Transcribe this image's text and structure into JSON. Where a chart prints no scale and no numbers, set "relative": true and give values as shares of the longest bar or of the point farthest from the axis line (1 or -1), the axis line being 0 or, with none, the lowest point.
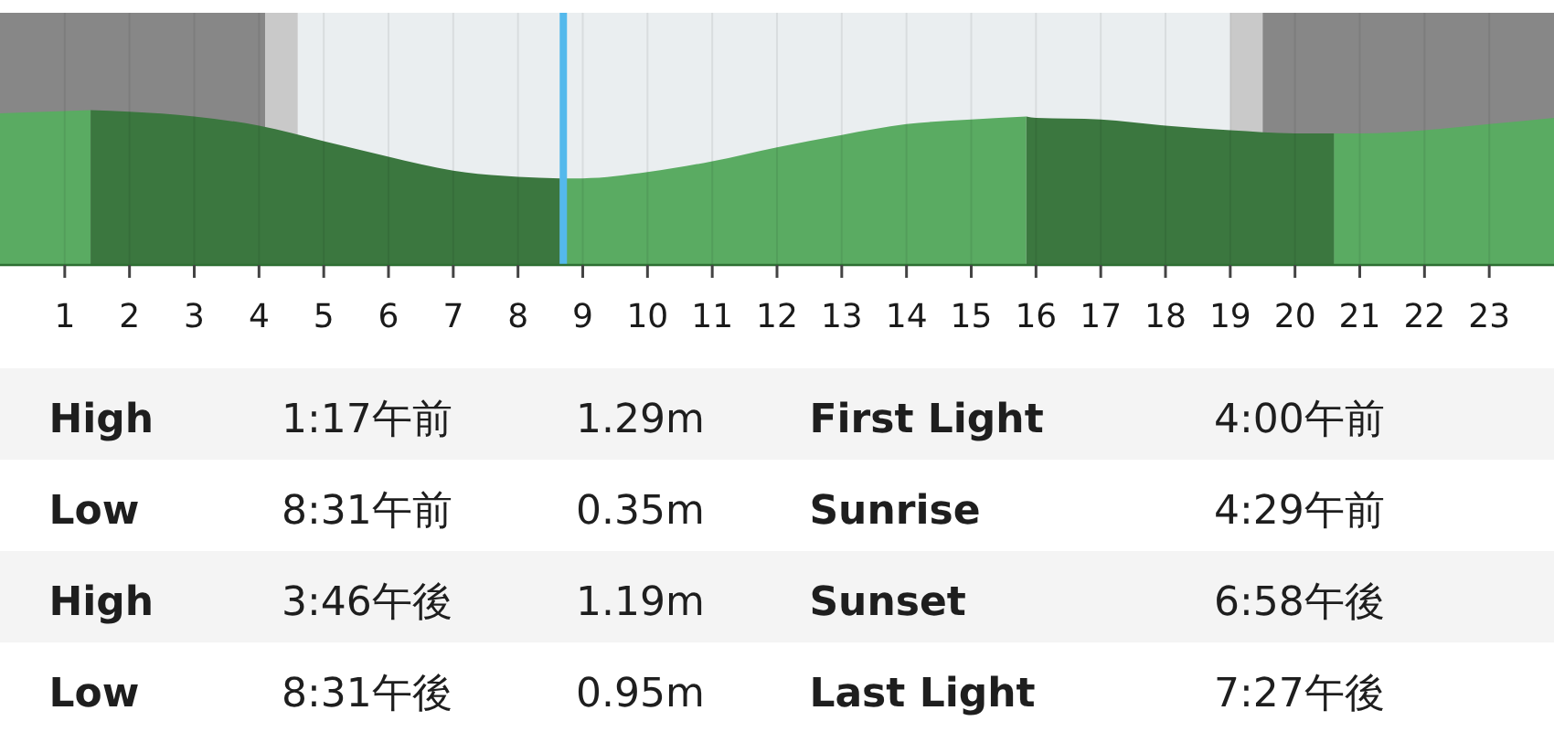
{
  "chart_data": [
    {
      "type": "area",
      "relative": true,
      "xlim": [
        0,
        24
      ],
      "xticks": [
        1,
        2,
        3,
        4,
        5,
        6,
        7,
        8,
        9,
        10,
        11,
        12,
        13,
        14,
        15,
        16,
        17,
        18,
        19,
        20,
        21,
        22,
        23
      ],
      "grid": "x",
      "x": [
        0,
        1.4,
        2,
        3,
        4,
        5,
        6,
        7,
        8,
        8.65,
        9,
        10,
        11,
        12,
        13,
        14,
        15,
        15.85,
        16,
        17,
        18,
        19,
        20,
        20.6,
        21,
        22,
        23,
        24
      ],
      "series": [
        {
          "color": "#5aab62",
          "values": [
            0.98,
            1,
            null,
            null,
            null,
            null,
            null,
            null,
            null,
            0.56,
            0.56,
            0.6,
            0.67,
            0.76,
            0.84,
            0.91,
            0.94,
            0.96,
            null,
            null,
            null,
            null,
            null,
            0.85,
            0.85,
            0.87,
            0.91,
            0.95
          ]
        },
        {
          "color": "#3b773f",
          "values": [
            null,
            1,
            0.99,
            0.96,
            0.9,
            0.8,
            0.7,
            0.61,
            0.57,
            0.56,
            null,
            null,
            null,
            null,
            null,
            null,
            null,
            0.96,
            0.95,
            0.94,
            0.9,
            0.87,
            0.85,
            0.85,
            null,
            null,
            null,
            null
          ]
        }
      ],
      "bands": [
        {
          "axis": "x",
          "from": 0,
          "to": 4.1,
          "color": "#878787"
        },
        {
          "axis": "x",
          "from": 4.1,
          "to": 4.6,
          "color": "#c9c9c9"
        },
        {
          "axis": "x",
          "from": 4.6,
          "to": 19.0,
          "color": "#eaeef0"
        },
        {
          "axis": "x",
          "from": 19.0,
          "to": 19.5,
          "color": "#c9c9c9"
        },
        {
          "axis": "x",
          "from": 19.5,
          "to": 24,
          "color": "#878787"
        }
      ],
      "ref_lines": [
        {
          "axis": "x",
          "value": 8.7,
          "color": "#54b9ec"
        }
      ]
    },
    {
      "type": "other",
      "annotations": [
        "High",
        "1:17午前",
        "1.29m",
        "First Light",
        "4:00午前",
        "Low",
        "8:31午前",
        "0.35m",
        "Sunrise",
        "4:29午前",
        "High",
        "3:46午後",
        "1.19m",
        "Sunset",
        "6:58午後",
        "Low",
        "8:31午後",
        "0.95m",
        "Last Light",
        "7:27午後"
      ]
    }
  ]
}
